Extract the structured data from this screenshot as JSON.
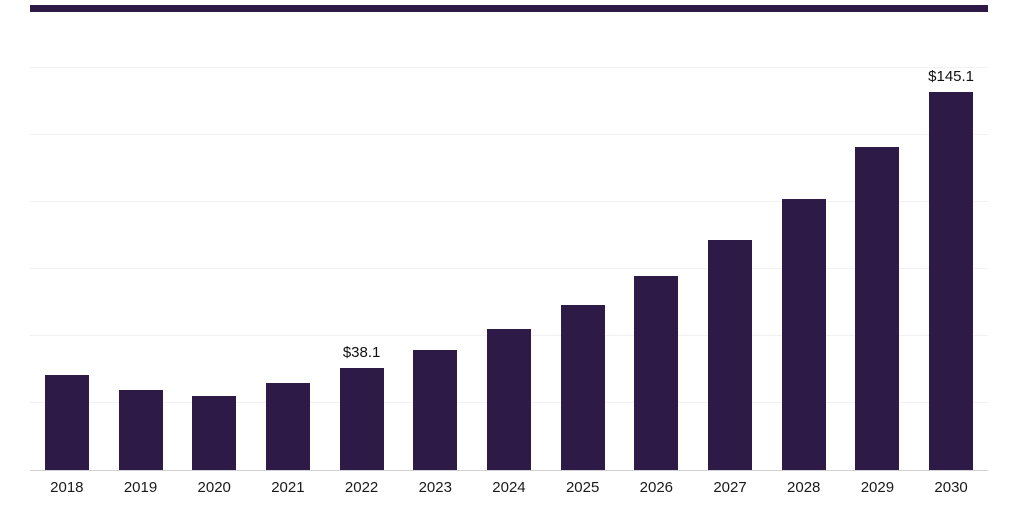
{
  "page": {
    "background_color": "#ffffff"
  },
  "colors": {
    "bar": "#2e1a47",
    "top_bar": "#2e1a47",
    "gridline": "#f1f1f3",
    "axis_line": "#d2d2d2",
    "label_text": "#1a1a1a"
  },
  "chart_data": {
    "type": "bar",
    "title": "",
    "xlabel": "",
    "ylabel": "",
    "categories": [
      "2018",
      "2019",
      "2020",
      "2021",
      "2022",
      "2023",
      "2024",
      "2025",
      "2026",
      "2027",
      "2028",
      "2029",
      "2030"
    ],
    "values": [
      35.5,
      30.0,
      27.5,
      32.5,
      38.1,
      44.9,
      52.8,
      61.5,
      72.3,
      86.0,
      101.3,
      120.5,
      145.1
    ],
    "data_labels": {
      "2022": "$38.1",
      "2030": "$145.1"
    },
    "bar_color": "#2e1a47",
    "ylim": [
      0,
      150
    ],
    "gridline_step": 25,
    "grid": true,
    "legend": "none",
    "y_axis_labels_visible": false
  }
}
